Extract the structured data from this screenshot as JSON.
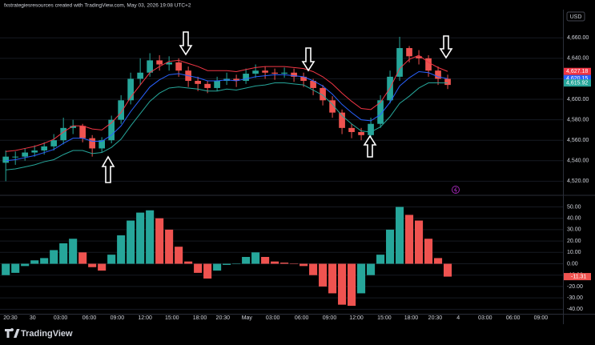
{
  "header": "fxstrategiesresources created with TradingView.com, May 03, 2026 19:08 UTC+2",
  "currency": "USD",
  "brand": "TradingView",
  "chart_data": [
    {
      "type": "candlestick",
      "up_color": "#26a69a",
      "down_color": "#ef5350",
      "xlim": [
        -0.6,
        58
      ],
      "ylim": [
        4507,
        4686
      ],
      "grid": true,
      "yticks": [
        {
          "value": 4660,
          "label": "4,660.00"
        },
        {
          "value": 4640,
          "label": "4,640.00"
        },
        {
          "value": 4620,
          "label": "4,620.00"
        },
        {
          "value": 4600,
          "label": "4,600.00"
        },
        {
          "value": 4580,
          "label": "4,580.00"
        },
        {
          "value": 4560,
          "label": "4,560.00"
        },
        {
          "value": 4540,
          "label": "4,540.00"
        },
        {
          "value": 4520,
          "label": "4,520.00"
        }
      ],
      "ohlc": [
        [
          4538,
          4550,
          4520,
          4544
        ],
        [
          4544,
          4549,
          4536,
          4544
        ],
        [
          4544,
          4552,
          4540,
          4548
        ],
        [
          4548,
          4555,
          4544,
          4550
        ],
        [
          4550,
          4558,
          4546,
          4554
        ],
        [
          4554,
          4566,
          4550,
          4560
        ],
        [
          4560,
          4582,
          4556,
          4572
        ],
        [
          4572,
          4580,
          4566,
          4574
        ],
        [
          4574,
          4576,
          4558,
          4562
        ],
        [
          4562,
          4565,
          4544,
          4552
        ],
        [
          4552,
          4563,
          4548,
          4560
        ],
        [
          4560,
          4584,
          4557,
          4580
        ],
        [
          4580,
          4604,
          4576,
          4599
        ],
        [
          4599,
          4626,
          4595,
          4620
        ],
        [
          4620,
          4640,
          4614,
          4626
        ],
        [
          4626,
          4645,
          4622,
          4638
        ],
        [
          4638,
          4643,
          4628,
          4634
        ],
        [
          4634,
          4642,
          4628,
          4636
        ],
        [
          4636,
          4640,
          4622,
          4628
        ],
        [
          4628,
          4632,
          4612,
          4618
        ],
        [
          4618,
          4622,
          4608,
          4615
        ],
        [
          4615,
          4618,
          4606,
          4611
        ],
        [
          4611,
          4622,
          4608,
          4618
        ],
        [
          4618,
          4626,
          4614,
          4620
        ],
        [
          4620,
          4624,
          4612,
          4618
        ],
        [
          4618,
          4630,
          4615,
          4625
        ],
        [
          4625,
          4634,
          4621,
          4628
        ],
        [
          4628,
          4632,
          4620,
          4626
        ],
        [
          4626,
          4630,
          4619,
          4625
        ],
        [
          4625,
          4631,
          4621,
          4626
        ],
        [
          4626,
          4630,
          4617,
          4622
        ],
        [
          4622,
          4626,
          4612,
          4618
        ],
        [
          4618,
          4620,
          4604,
          4611
        ],
        [
          4611,
          4614,
          4594,
          4599
        ],
        [
          4599,
          4603,
          4582,
          4587
        ],
        [
          4587,
          4590,
          4566,
          4572
        ],
        [
          4572,
          4576,
          4562,
          4568
        ],
        [
          4568,
          4572,
          4560,
          4565
        ],
        [
          4565,
          4582,
          4562,
          4576
        ],
        [
          4576,
          4604,
          4572,
          4599
        ],
        [
          4599,
          4628,
          4596,
          4622
        ],
        [
          4622,
          4661,
          4618,
          4650
        ],
        [
          4650,
          4652,
          4636,
          4642
        ],
        [
          4642,
          4648,
          4634,
          4640
        ],
        [
          4640,
          4643,
          4622,
          4628
        ],
        [
          4628,
          4632,
          4614,
          4620
        ],
        [
          4620,
          4624,
          4610,
          4614
        ]
      ],
      "series": [
        {
          "color": "#f23645",
          "values": [
            4549,
            4550,
            4552,
            4554,
            4557,
            4561,
            4568,
            4574,
            4574,
            4571,
            4570,
            4577,
            4587,
            4602,
            4614,
            4626,
            4632,
            4637,
            4638,
            4635,
            4632,
            4628,
            4628,
            4628,
            4627,
            4629,
            4631,
            4632,
            4632,
            4632,
            4631,
            4630,
            4627,
            4622,
            4615,
            4606,
            4598,
            4591,
            4590,
            4597,
            4611,
            4630,
            4639,
            4643,
            4636,
            4631,
            4627.18
          ]
        },
        {
          "color": "#2962ff",
          "values": [
            4540,
            4541,
            4543,
            4545,
            4548,
            4551,
            4557,
            4562,
            4562,
            4559,
            4559,
            4565,
            4574,
            4588,
            4600,
            4612,
            4619,
            4624,
            4625,
            4623,
            4621,
            4618,
            4618,
            4619,
            4618,
            4620,
            4622,
            4623,
            4624,
            4624,
            4623,
            4622,
            4618,
            4613,
            4605,
            4595,
            4587,
            4580,
            4579,
            4585,
            4597,
            4613,
            4621,
            4627,
            4626,
            4622,
            4620.15
          ]
        },
        {
          "color": "#26a69a",
          "values": [
            4531,
            4532,
            4534,
            4536,
            4539,
            4541,
            4546,
            4550,
            4550,
            4547,
            4548,
            4553,
            4561,
            4574,
            4586,
            4598,
            4606,
            4611,
            4612,
            4611,
            4610,
            4608,
            4608,
            4610,
            4609,
            4611,
            4613,
            4614,
            4616,
            4616,
            4615,
            4614,
            4609,
            4604,
            4595,
            4584,
            4576,
            4569,
            4568,
            4573,
            4583,
            4596,
            4603,
            4611,
            4616,
            4616,
            4615.92
          ]
        }
      ],
      "price_tags": [
        {
          "value": 4627.18,
          "label": "4,627.18",
          "color": "#f23645"
        },
        {
          "value": 4620.15,
          "label": "4,620.15",
          "color": "#2962ff"
        },
        {
          "value": 4615.92,
          "label": "4,615.92",
          "color": "#26a69a"
        }
      ]
    },
    {
      "type": "histogram",
      "up_color": "#26a69a",
      "down_color": "#ef5350",
      "xlim": [
        -0.6,
        58
      ],
      "ylim": [
        -44,
        59.5
      ],
      "grid": true,
      "yticks": [
        {
          "value": 50,
          "label": "50.00"
        },
        {
          "value": 40,
          "label": "40.00"
        },
        {
          "value": 30,
          "label": "30.00"
        },
        {
          "value": 20,
          "label": "20.00"
        },
        {
          "value": 10,
          "label": "10.00"
        },
        {
          "value": 0,
          "label": "0.00"
        },
        {
          "value": -10,
          "label": "-10.00"
        },
        {
          "value": -20,
          "label": "-20.00"
        },
        {
          "value": -30,
          "label": "-30.00"
        },
        {
          "value": -40,
          "label": "-40.00"
        }
      ],
      "xticks": [
        {
          "value": 0.48,
          "label": "20:30"
        },
        {
          "value": 2.8,
          "label": "30"
        },
        {
          "value": 5.7,
          "label": "03:00"
        },
        {
          "value": 8.7,
          "label": "06:00"
        },
        {
          "value": 11.6,
          "label": "09:00"
        },
        {
          "value": 14.5,
          "label": "12:00"
        },
        {
          "value": 17.3,
          "label": "15:00"
        },
        {
          "value": 20.2,
          "label": "18:00"
        },
        {
          "value": 22.6,
          "label": "20:30"
        },
        {
          "value": 25.1,
          "label": "May"
        },
        {
          "value": 27.8,
          "label": "03:00"
        },
        {
          "value": 30.8,
          "label": "06:00"
        },
        {
          "value": 33.7,
          "label": "09:00"
        },
        {
          "value": 36.5,
          "label": "12:00"
        },
        {
          "value": 39.4,
          "label": "15:00"
        },
        {
          "value": 42.2,
          "label": "18:00"
        },
        {
          "value": 44.7,
          "label": "20:30"
        },
        {
          "value": 47.1,
          "label": "4"
        },
        {
          "value": 49.9,
          "label": "03:00"
        },
        {
          "value": 52.8,
          "label": "06:00"
        },
        {
          "value": 55.7,
          "label": "09:00"
        }
      ],
      "values": [
        -10,
        -8,
        -2,
        3,
        5,
        12,
        18,
        22,
        10,
        -3,
        -6,
        8,
        25,
        38,
        45,
        47,
        40,
        30,
        15,
        2,
        -8,
        -13,
        -6,
        -1,
        0,
        6,
        10,
        6,
        2,
        1,
        0,
        -2,
        -10,
        -20,
        -26,
        -36,
        -37,
        -26,
        -10,
        8,
        30,
        50,
        43,
        38,
        22,
        5,
        -11.31
      ]
    }
  ]
}
